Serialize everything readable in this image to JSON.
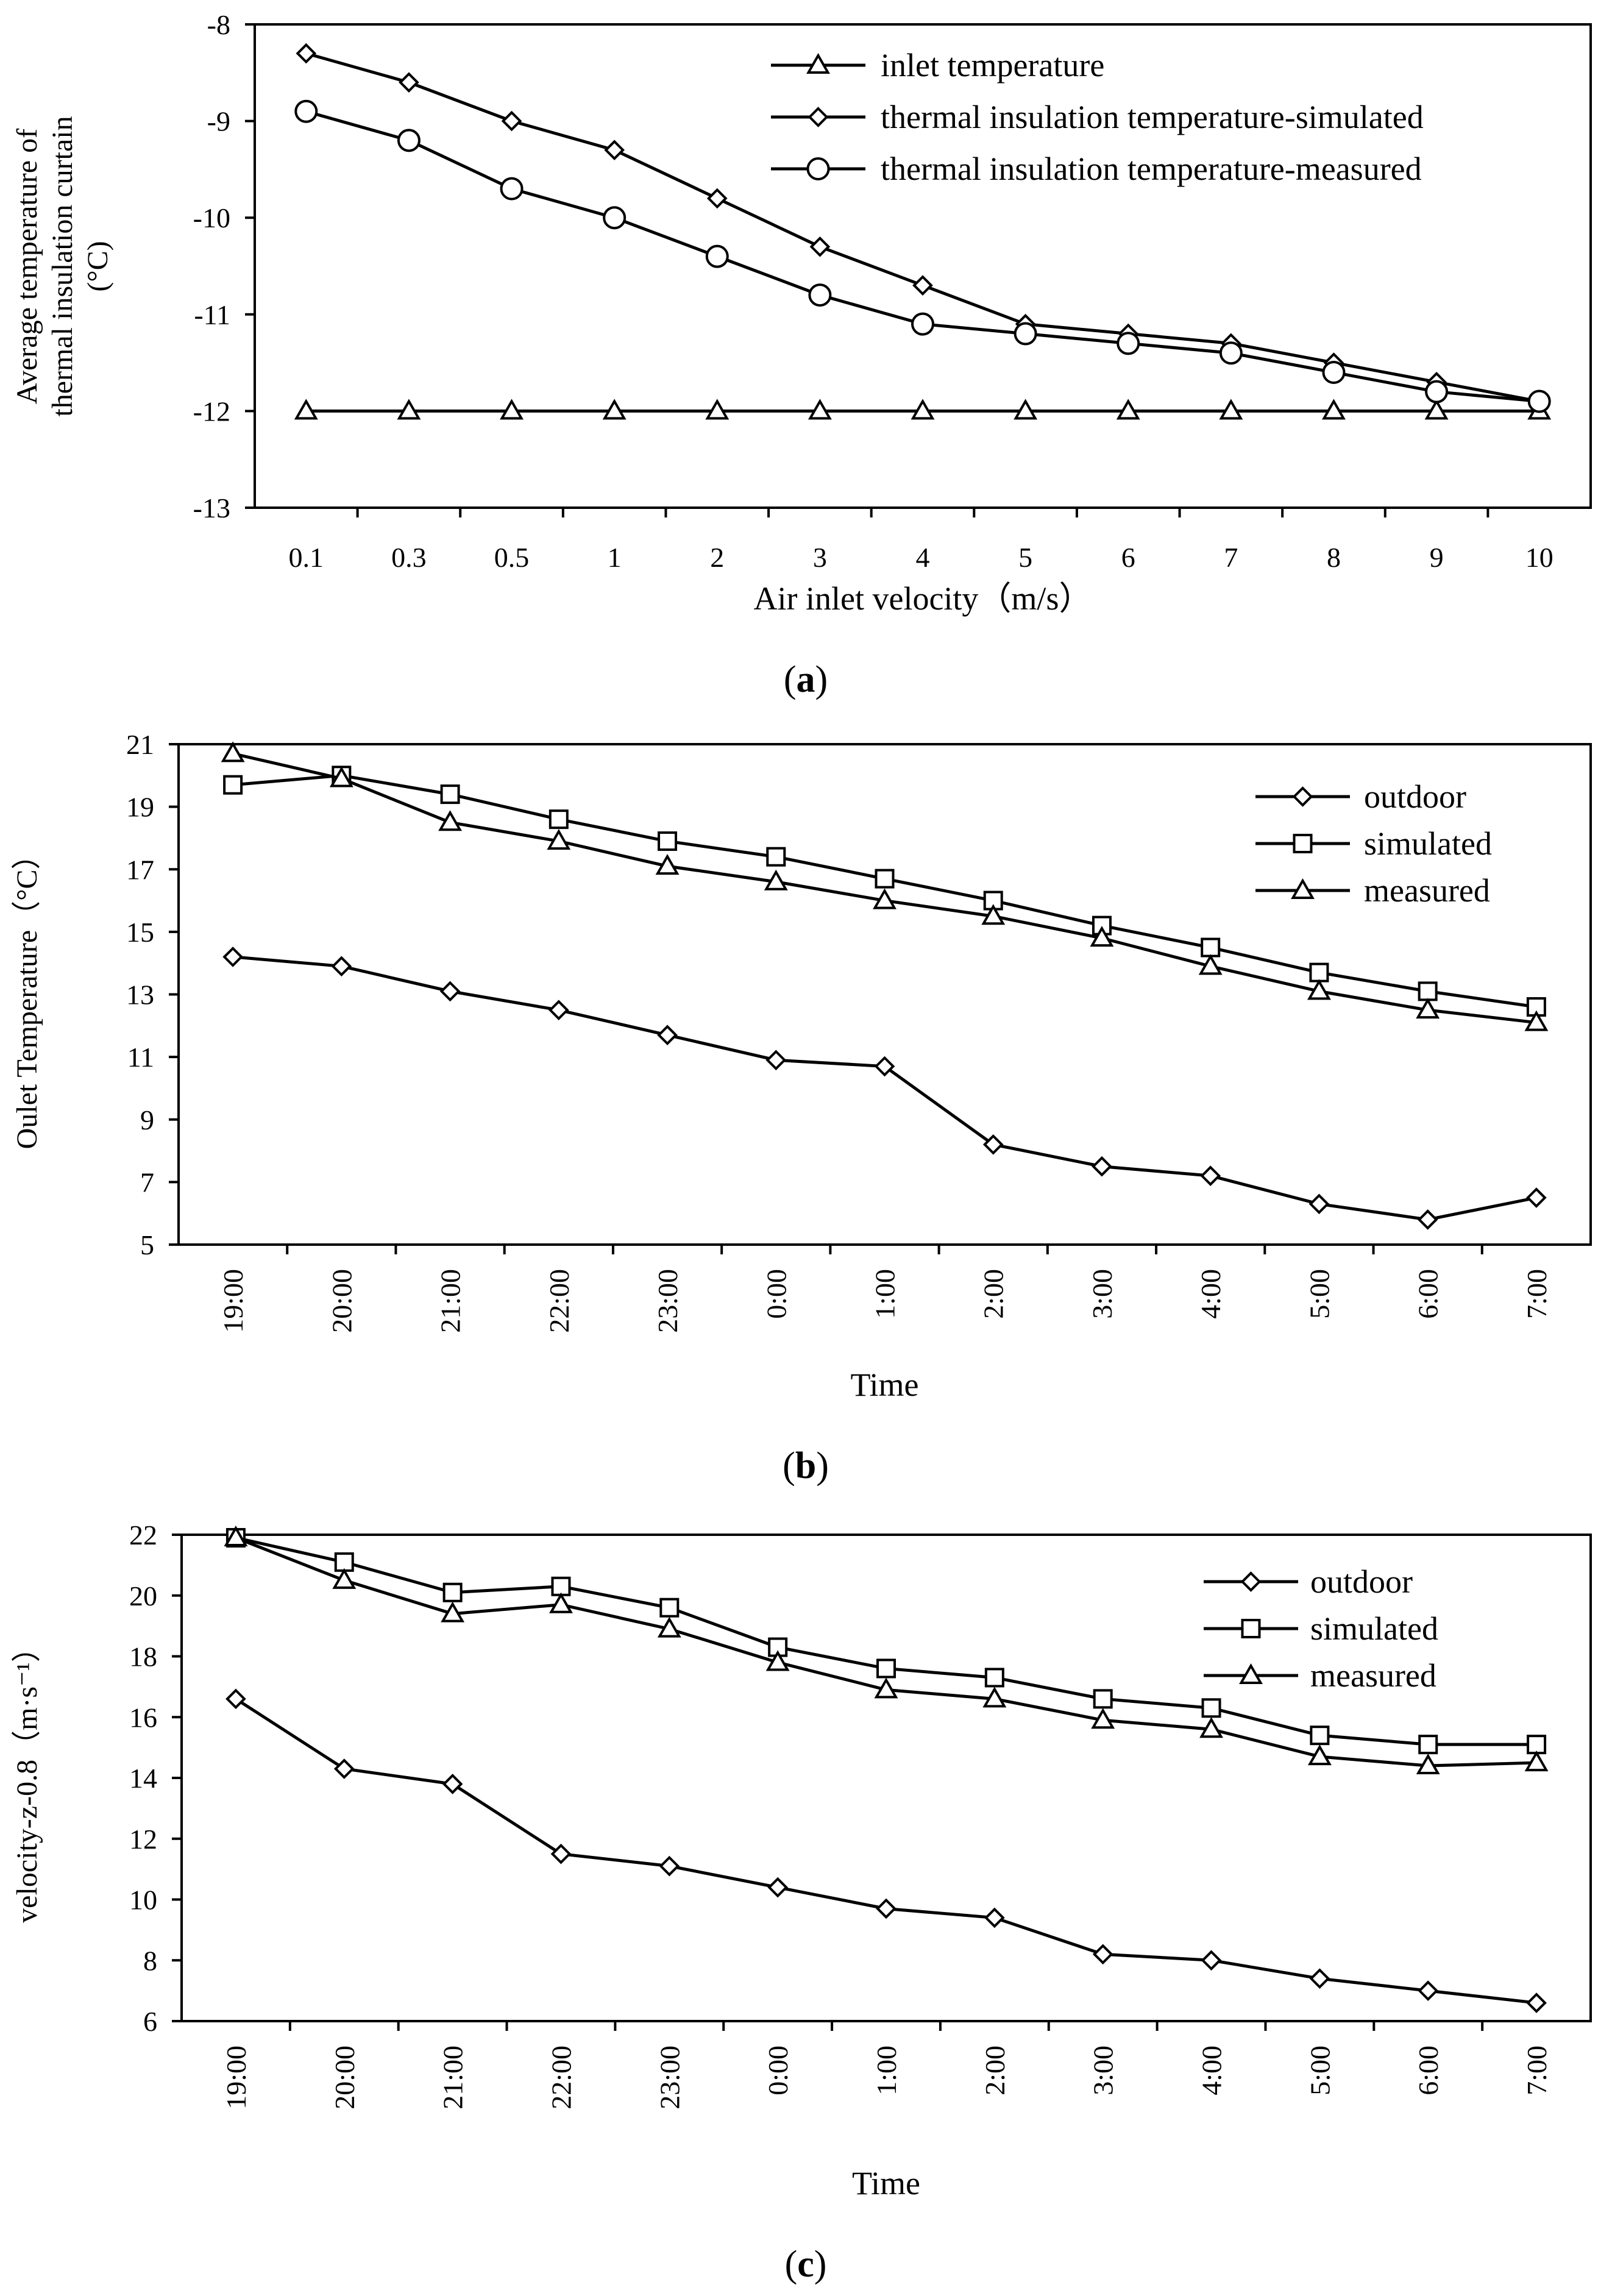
{
  "chart_data": [
    {
      "type": "line",
      "caption": "(a)",
      "caption_letter": "a",
      "categories": [
        "0.1",
        "0.3",
        "0.5",
        "1",
        "2",
        "3",
        "4",
        "5",
        "6",
        "7",
        "8",
        "9",
        "10"
      ],
      "xlabel": "Air inlet velocity（m/s）",
      "ylabel_lines": [
        "Average temperature of",
        "thermal insulation curtain",
        "(°C)"
      ],
      "ylim": [
        -13,
        -8
      ],
      "yticks": [
        -8,
        -9,
        -10,
        -11,
        -12,
        -13
      ],
      "grid": false,
      "legend_position": "top-right",
      "series": [
        {
          "name": "inlet temperature",
          "marker": "triangle",
          "values": [
            -12,
            -12,
            -12,
            -12,
            -12,
            -12,
            -12,
            -12,
            -12,
            -12,
            -12,
            -12,
            -12
          ]
        },
        {
          "name": "thermal insulation temperature-simulated",
          "marker": "diamond",
          "values": [
            -8.3,
            -8.6,
            -9.0,
            -9.3,
            -9.8,
            -10.3,
            -10.7,
            -11.1,
            -11.2,
            -11.3,
            -11.5,
            -11.7,
            -11.9
          ]
        },
        {
          "name": "thermal insulation temperature-measured",
          "marker": "circle",
          "values": [
            -8.9,
            -9.2,
            -9.7,
            -10.0,
            -10.4,
            -10.8,
            -11.1,
            -11.2,
            -11.3,
            -11.4,
            -11.6,
            -11.8,
            -11.9
          ]
        }
      ]
    },
    {
      "type": "line",
      "caption": "(b)",
      "caption_letter": "b",
      "categories": [
        "19:00",
        "20:00",
        "21:00",
        "22:00",
        "23:00",
        "0:00",
        "1:00",
        "2:00",
        "3:00",
        "4:00",
        "5:00",
        "6:00",
        "7:00"
      ],
      "xlabel": "Time",
      "ylabel_lines": [
        "Oulet Temperature（°C）"
      ],
      "ylim": [
        5,
        21
      ],
      "yticks": [
        21,
        19,
        17,
        15,
        13,
        11,
        9,
        7,
        5
      ],
      "grid": false,
      "legend_position": "top-right",
      "series": [
        {
          "name": "outdoor",
          "marker": "diamond",
          "values": [
            14.2,
            13.9,
            13.1,
            12.5,
            11.7,
            10.9,
            10.7,
            8.2,
            7.5,
            7.2,
            6.3,
            5.8,
            6.5
          ]
        },
        {
          "name": "simulated",
          "marker": "square",
          "values": [
            19.7,
            20.0,
            19.4,
            18.6,
            17.9,
            17.4,
            16.7,
            16.0,
            15.2,
            14.5,
            13.7,
            13.1,
            12.6
          ]
        },
        {
          "name": "measured",
          "marker": "triangle",
          "values": [
            20.7,
            19.9,
            18.5,
            17.9,
            17.1,
            16.6,
            16.0,
            15.5,
            14.8,
            13.9,
            13.1,
            12.5,
            12.1
          ]
        }
      ]
    },
    {
      "type": "line",
      "caption": "(c)",
      "caption_letter": "c",
      "categories": [
        "19:00",
        "20:00",
        "21:00",
        "22:00",
        "23:00",
        "0:00",
        "1:00",
        "2:00",
        "3:00",
        "4:00",
        "5:00",
        "6:00",
        "7:00"
      ],
      "xlabel": "Time",
      "ylabel_lines": [
        "velocity-z-0.8（m·s⁻¹）"
      ],
      "ylim": [
        6,
        22
      ],
      "yticks": [
        22,
        20,
        18,
        16,
        14,
        12,
        10,
        8,
        6
      ],
      "grid": false,
      "legend_position": "top-right",
      "series": [
        {
          "name": "outdoor",
          "marker": "diamond",
          "values": [
            16.6,
            14.3,
            13.8,
            11.5,
            11.1,
            10.4,
            9.7,
            9.4,
            8.2,
            8.0,
            7.4,
            7.0,
            6.6
          ]
        },
        {
          "name": "simulated",
          "marker": "square",
          "values": [
            21.9,
            21.1,
            20.1,
            20.3,
            19.6,
            18.3,
            17.6,
            17.3,
            16.6,
            16.3,
            15.4,
            15.1,
            15.1
          ]
        },
        {
          "name": "measured",
          "marker": "triangle",
          "values": [
            21.9,
            20.5,
            19.4,
            19.7,
            18.9,
            17.8,
            16.9,
            16.6,
            15.9,
            15.6,
            14.7,
            14.4,
            14.5
          ]
        }
      ]
    }
  ]
}
